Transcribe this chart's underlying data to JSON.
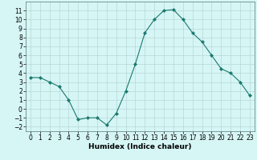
{
  "x": [
    0,
    1,
    2,
    3,
    4,
    5,
    6,
    7,
    8,
    9,
    10,
    11,
    12,
    13,
    14,
    15,
    16,
    17,
    18,
    19,
    20,
    21,
    22,
    23
  ],
  "y": [
    3.5,
    3.5,
    3.0,
    2.5,
    1.0,
    -1.2,
    -1.0,
    -1.0,
    -1.8,
    -0.5,
    2.0,
    5.0,
    8.5,
    10.0,
    11.0,
    11.1,
    10.0,
    8.5,
    7.5,
    6.0,
    4.5,
    4.0,
    3.0,
    1.5
  ],
  "line_color": "#1a7a6e",
  "marker": "D",
  "marker_size": 2,
  "bg_color": "#d6f5f5",
  "grid_color": "#b8d8d8",
  "xlabel": "Humidex (Indice chaleur)",
  "xlim": [
    -0.5,
    23.5
  ],
  "ylim": [
    -2.5,
    12.0
  ],
  "yticks": [
    -2,
    -1,
    0,
    1,
    2,
    3,
    4,
    5,
    6,
    7,
    8,
    9,
    10,
    11
  ],
  "xticks": [
    0,
    1,
    2,
    3,
    4,
    5,
    6,
    7,
    8,
    9,
    10,
    11,
    12,
    13,
    14,
    15,
    16,
    17,
    18,
    19,
    20,
    21,
    22,
    23
  ],
  "label_fontsize": 6.5,
  "tick_fontsize": 5.5
}
